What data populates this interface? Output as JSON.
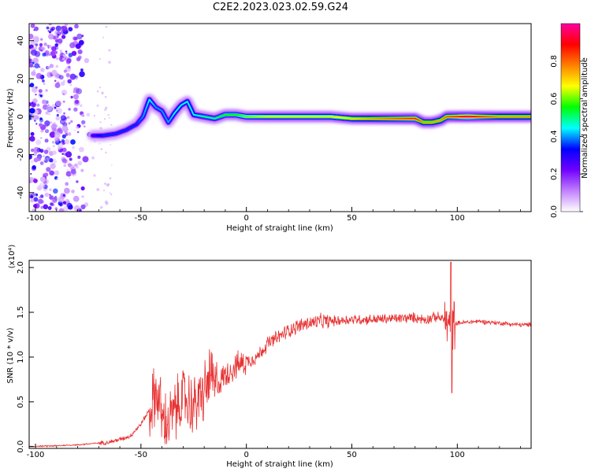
{
  "title": "C2E2.2023.023.02.59.G24",
  "chart_data": [
    {
      "type": "heatmap",
      "xlabel": "Height of straight line (km)",
      "ylabel": "Frequency (Hz)",
      "xlim": [
        -103,
        135
      ],
      "ylim": [
        -50,
        49
      ],
      "xticks": [
        "-100",
        "-50",
        "0",
        "50",
        "100"
      ],
      "yticks": [
        "40",
        "20",
        "0",
        "-20",
        "-40"
      ],
      "colorbar": {
        "label": "Normalized spectral amplitude",
        "range": [
          0,
          1
        ],
        "ticks": [
          "0.0",
          "0.2",
          "0.4",
          "0.6",
          "0.8"
        ],
        "colors": [
          "#ffffff",
          "#c080ff",
          "#7000ff",
          "#0000ff",
          "#00ffff",
          "#00ff00",
          "#ffff00",
          "#ff8000",
          "#ff0000",
          "#ff00a0"
        ]
      },
      "ridge": {
        "x": [
          -73,
          -68,
          -62,
          -57,
          -52,
          -49,
          -46,
          -43,
          -40,
          -37,
          -34,
          -31,
          -28,
          -25,
          -20,
          -15,
          -10,
          -5,
          0,
          10,
          20,
          30,
          40,
          50,
          60,
          70,
          80,
          84,
          88,
          92,
          95,
          100,
          105,
          110,
          120,
          135
        ],
        "y": [
          -10,
          -10,
          -9,
          -7,
          -4,
          0,
          9,
          5,
          3,
          -3,
          2,
          6,
          8,
          1,
          0,
          -1,
          1,
          1,
          0,
          0,
          0,
          0,
          0,
          -1,
          -1,
          -1,
          -1,
          -3,
          -3,
          -2,
          0,
          0,
          0,
          0,
          0,
          0
        ],
        "intensity": [
          0.3,
          0.35,
          0.35,
          0.35,
          0.35,
          0.4,
          0.45,
          0.4,
          0.4,
          0.4,
          0.45,
          0.45,
          0.45,
          0.45,
          0.5,
          0.5,
          0.55,
          0.55,
          0.6,
          0.65,
          0.65,
          0.65,
          0.65,
          0.7,
          0.75,
          0.8,
          0.85,
          0.75,
          0.75,
          0.75,
          0.8,
          0.85,
          0.95,
          0.85,
          0.75,
          0.75
        ]
      },
      "noise_region_x": [
        -103,
        -73
      ]
    },
    {
      "type": "line",
      "xlabel": "Height of straight line (km)",
      "ylabel": "SNR (10 * v/v)",
      "y_multiplier": "(x10⁴)",
      "xlim": [
        -103,
        135
      ],
      "ylim": [
        -0.02,
        2.08
      ],
      "xticks": [
        "-100",
        "-50",
        "0",
        "50",
        "100"
      ],
      "yticks": [
        "0.0",
        "0.5",
        "1.0",
        "1.5",
        "2.0"
      ],
      "series": [
        {
          "color": "#e83030",
          "x": [
            -103,
            -90,
            -80,
            -70,
            -65,
            -60,
            -55,
            -50,
            -45,
            -43,
            -41,
            -40,
            -38,
            -35,
            -30,
            -25,
            -20,
            -17,
            -15,
            -10,
            -5,
            0,
            5,
            10,
            15,
            20,
            25,
            30,
            35,
            40,
            50,
            60,
            70,
            80,
            85,
            90,
            94,
            96,
            97,
            98,
            100,
            110,
            120,
            130,
            135
          ],
          "y": [
            0.0,
            0.01,
            0.02,
            0.04,
            0.05,
            0.08,
            0.12,
            0.25,
            0.45,
            0.6,
            0.5,
            0.3,
            0.25,
            0.35,
            0.55,
            0.45,
            0.6,
            0.8,
            0.65,
            0.8,
            0.9,
            0.95,
            1.0,
            1.15,
            1.22,
            1.3,
            1.35,
            1.38,
            1.4,
            1.4,
            1.42,
            1.42,
            1.43,
            1.44,
            1.42,
            1.45,
            1.42,
            1.35,
            1.2,
            1.37,
            1.38,
            1.4,
            1.38,
            1.36,
            1.36
          ]
        }
      ],
      "annotations": [
        {
          "x": 97,
          "y": 2.06,
          "note": "spike"
        },
        {
          "x": 97,
          "y": 0.6,
          "note": "dip"
        }
      ]
    }
  ]
}
